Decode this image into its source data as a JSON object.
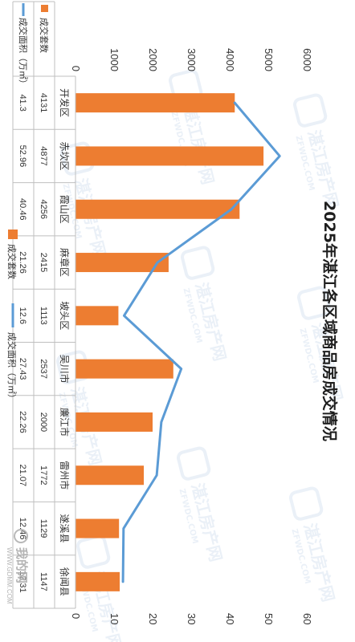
{
  "chart_data": {
    "type": "bar",
    "title": "2025年湛江各区域商品房成交情况",
    "categories": [
      "开发区",
      "赤坎区",
      "霞山区",
      "麻章区",
      "坡头区",
      "吴川市",
      "廉江市",
      "雷州市",
      "遂溪县",
      "徐闻县"
    ],
    "series": [
      {
        "name": "成交套数",
        "type": "bar",
        "axis": "left",
        "color": "#ED7D31",
        "values": [
          4131,
          4877,
          4256,
          2415,
          1113,
          2537,
          2000,
          1772,
          1129,
          1147
        ]
      },
      {
        "name": "成交面积（万㎡）",
        "type": "line",
        "axis": "right",
        "color": "#5B9BD5",
        "values": [
          41.3,
          52.96,
          40.46,
          21.26,
          12.6,
          27.43,
          22.26,
          21.07,
          12.46,
          12.31
        ]
      }
    ],
    "left_axis": {
      "ticks": [
        "0",
        "1000",
        "2000",
        "3000",
        "4000",
        "5000",
        "6000"
      ],
      "range": [
        0,
        6000
      ]
    },
    "right_axis": {
      "ticks": [
        "0",
        "10",
        "20",
        "30",
        "40",
        "50",
        "60"
      ],
      "range": [
        0,
        60
      ]
    },
    "table_rows": [
      {
        "label": "成交套数",
        "values": [
          "4131",
          "4877",
          "4256",
          "2415",
          "1113",
          "2537",
          "2000",
          "1772",
          "1129",
          "1147"
        ]
      },
      {
        "label": "成交面积（万㎡）",
        "values": [
          "41.3",
          "52.96",
          "40.46",
          "21.26",
          "12.6",
          "27.43",
          "22.26",
          "21.07",
          "12.46",
          "12.31"
        ]
      }
    ],
    "legend": {
      "position": "bottom",
      "entries": [
        "成交套数",
        "成交面积（万㎡）"
      ]
    },
    "grid": false
  },
  "watermark": {
    "text": "湛江房产网",
    "subtext": "ZFWDC.COM"
  },
  "footer_logo": {
    "text": "我的网",
    "url_text": "WWW.GDMM.COM"
  }
}
